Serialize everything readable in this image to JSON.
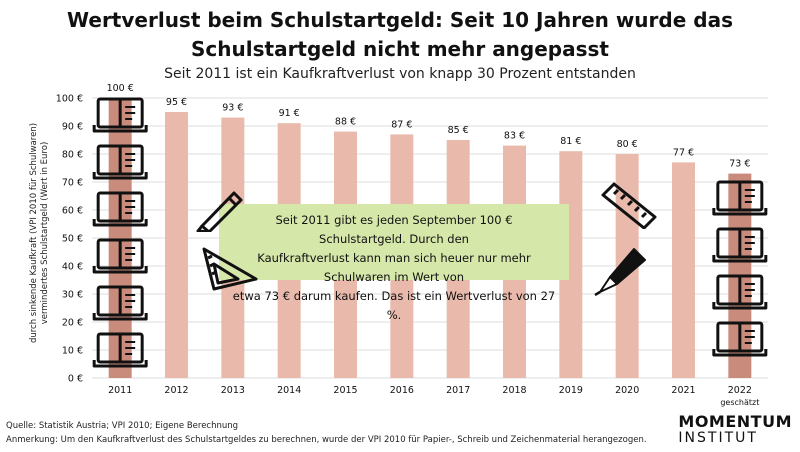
{
  "header": {
    "title_line1": "Wertverlust beim Schulstartgeld: Seit 10 Jahren wurde das",
    "title_line2": "Schulstartgeld nicht mehr angepasst",
    "subtitle": "Seit 2011 ist ein Kaufkraftverlust von knapp 30 Prozent entstanden"
  },
  "chart_data": {
    "type": "bar",
    "title": "Wertverlust beim Schulstartgeld: Seit 10 Jahren wurde das Schulstartgeld nicht mehr angepasst",
    "subtitle": "Seit 2011 ist ein Kaufkraftverlust von knapp 30 Prozent entstanden",
    "categories": [
      "2011",
      "2012",
      "2013",
      "2014",
      "2015",
      "2016",
      "2017",
      "2018",
      "2019",
      "2020",
      "2021",
      "2022"
    ],
    "category_sublabels": {
      "2022": "geschätzt"
    },
    "values": [
      100,
      95,
      93,
      91,
      88,
      87,
      85,
      83,
      81,
      80,
      77,
      73
    ],
    "value_labels": [
      "100 €",
      "95 €",
      "93 €",
      "91 €",
      "88 €",
      "87 €",
      "85 €",
      "83 €",
      "81 €",
      "80 €",
      "77 €",
      "73 €"
    ],
    "ylabel_line1": "durch sinkende Kaufkraft (VPI 2010 für Schulwaren)",
    "ylabel_line2": "vermindertes Schulstartgeld (Wert in Euro)",
    "ylim": [
      0,
      100
    ],
    "yticks": [
      0,
      10,
      20,
      30,
      40,
      50,
      60,
      70,
      80,
      90,
      100
    ],
    "ytick_labels": [
      "0 €",
      "10 €",
      "20 €",
      "30 €",
      "40 €",
      "50 €",
      "60 €",
      "70 €",
      "80 €",
      "90 €",
      "100 €"
    ],
    "grid": true,
    "legend": "none"
  },
  "colors": {
    "bar": "#e9b9ab",
    "bar_first": "#c98b7b",
    "bar_last": "#c98b7b",
    "callout_bg": "#d6e7aa",
    "grid": "#dddddd"
  },
  "callout": {
    "line1": "Seit 2011 gibt es jeden September 100 € Schulstartgeld. Durch den",
    "line2": "Kaufkraftverlust kann man sich heuer nur mehr Schulwaren im Wert von",
    "line3": "etwa 73 € darum kaufen. Das ist ein Wertverlust von 27 %."
  },
  "icons": [
    "book-icon",
    "pencil-icon",
    "set-square-icon",
    "ruler-icon",
    "fountain-pen-icon"
  ],
  "footer": {
    "source": "Quelle: Statistik Austria; VPI 2010; Eigene Berechnung",
    "note": "Anmerkung: Um den Kaufkraftverlust des Schulstartgeldes zu berechnen, wurde der VPI 2010 für Papier-, Schreib und Zeichenmaterial herangezogen.",
    "logo_line1": "MOMENTUM",
    "logo_line2": "INSTITUT"
  }
}
